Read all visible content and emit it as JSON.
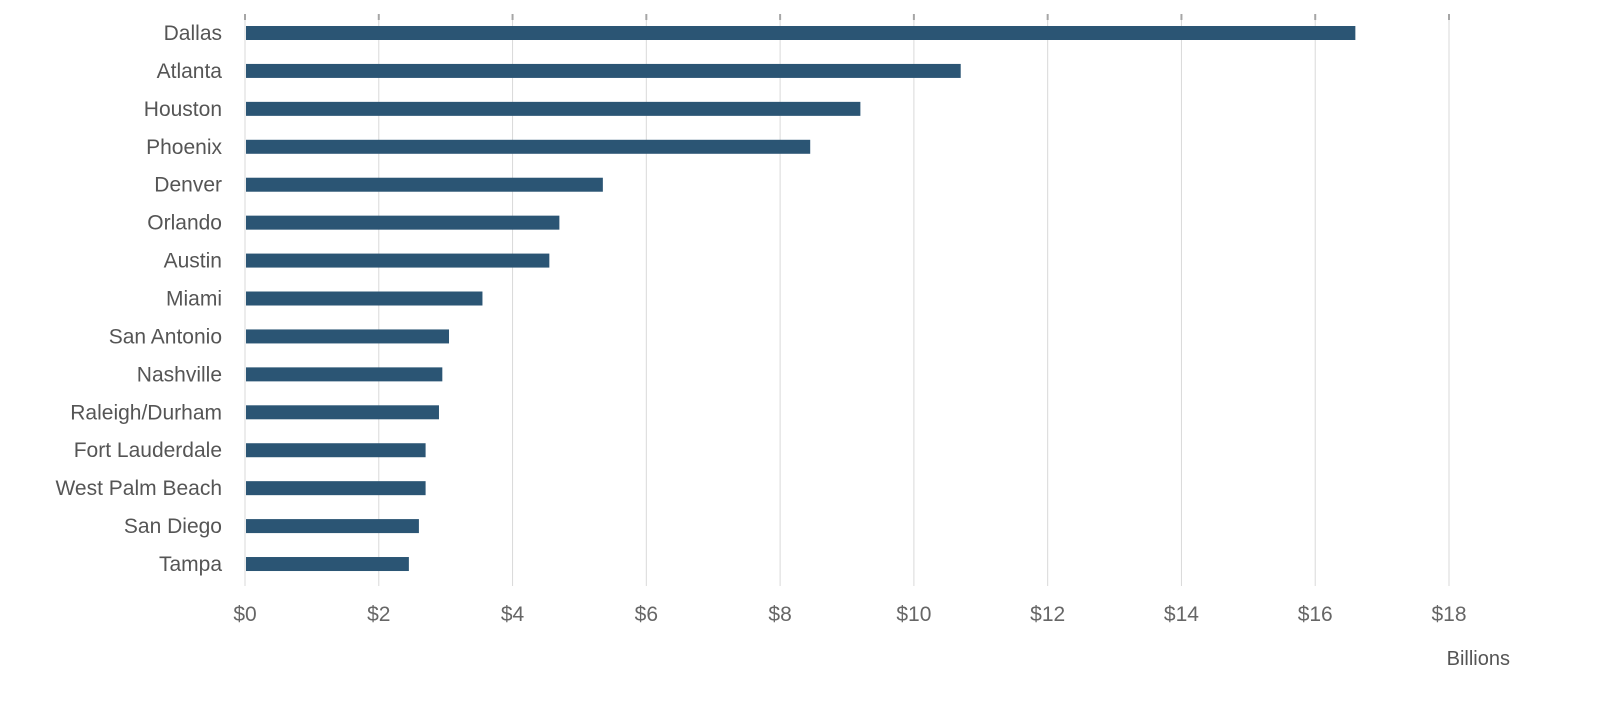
{
  "chart_data": {
    "type": "bar",
    "orientation": "horizontal",
    "categories": [
      "Dallas",
      "Atlanta",
      "Houston",
      "Phoenix",
      "Denver",
      "Orlando",
      "Austin",
      "Miami",
      "San Antonio",
      "Nashville",
      "Raleigh/Durham",
      "Fort Lauderdale",
      "West Palm Beach",
      "San Diego",
      "Tampa"
    ],
    "values": [
      16.6,
      10.7,
      9.2,
      8.45,
      5.35,
      4.7,
      4.55,
      3.55,
      3.05,
      2.95,
      2.9,
      2.7,
      2.7,
      2.6,
      2.45
    ],
    "xlim": [
      0,
      18
    ],
    "xticks": [
      0,
      2,
      4,
      6,
      8,
      10,
      12,
      14,
      16,
      18
    ],
    "xtick_labels": [
      "$0",
      "$2",
      "$4",
      "$6",
      "$8",
      "$10",
      "$12",
      "$14",
      "$16",
      "$18"
    ],
    "xlabel": "Billions",
    "ylabel": "",
    "title": "",
    "grid": "vertical",
    "bar_color": "#2b5574"
  }
}
